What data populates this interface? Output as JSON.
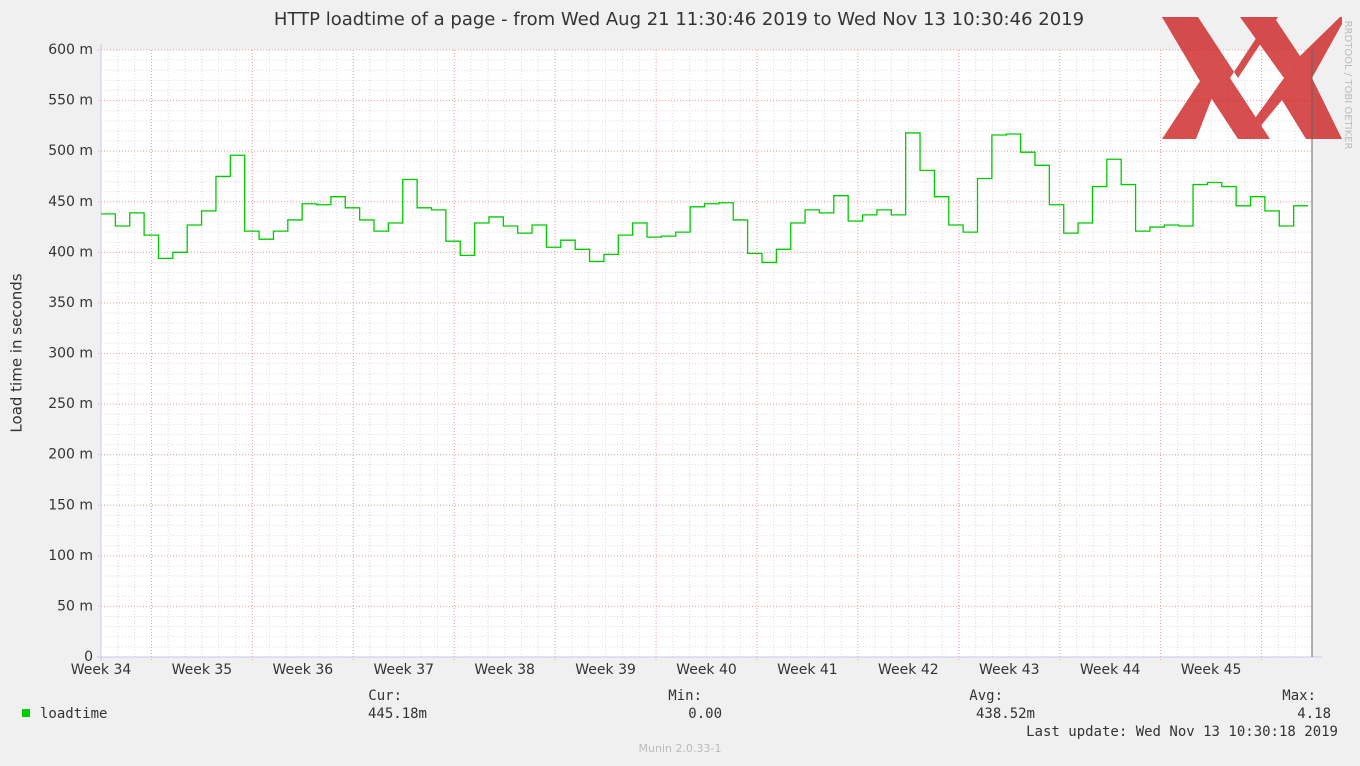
{
  "chart_data": {
    "type": "line",
    "step": true,
    "title": "HTTP loadtime of a page - from Wed Aug 21 11:30:46 2019 to Wed Nov 13 10:30:46 2019",
    "y_label": "Load time in seconds",
    "side_label": "RRDTOOL / TOBI OETIKER",
    "xticks": [
      "Week 34",
      "Week 35",
      "Week 36",
      "Week 37",
      "Week 38",
      "Week 39",
      "Week 40",
      "Week 41",
      "Week 42",
      "Week 43",
      "Week 44",
      "Week 45"
    ],
    "ylim": [
      0,
      600
    ],
    "yticks": [
      {
        "value": 0,
        "label": "0"
      },
      {
        "value": 50,
        "label": "50 m"
      },
      {
        "value": 100,
        "label": "100 m"
      },
      {
        "value": 150,
        "label": "150 m"
      },
      {
        "value": 200,
        "label": "200 m"
      },
      {
        "value": 250,
        "label": "250 m"
      },
      {
        "value": 300,
        "label": "300 m"
      },
      {
        "value": 350,
        "label": "350 m"
      },
      {
        "value": 400,
        "label": "400 m"
      },
      {
        "value": 450,
        "label": "450 m"
      },
      {
        "value": 500,
        "label": "500 m"
      },
      {
        "value": 550,
        "label": "550 m"
      },
      {
        "value": 600,
        "label": "600 m"
      }
    ],
    "grid": true,
    "series": [
      {
        "name": "loadtime",
        "color": "#00cc00",
        "values": [
          438,
          426,
          439,
          417,
          394,
          400,
          427,
          441,
          475,
          496,
          421,
          413,
          421,
          432,
          448,
          447,
          455,
          444,
          432,
          421,
          429,
          472,
          444,
          442,
          411,
          397,
          429,
          435,
          426,
          419,
          427,
          405,
          412,
          403,
          391,
          398,
          417,
          429,
          415,
          416,
          420,
          445,
          448,
          449,
          432,
          399,
          390,
          403,
          429,
          442,
          439,
          456,
          431,
          437,
          442,
          437,
          518,
          481,
          455,
          427,
          420,
          473,
          516,
          517,
          499,
          486,
          447,
          419,
          429,
          465,
          492,
          467,
          421,
          425,
          427,
          426,
          467,
          469,
          465,
          446,
          455,
          441,
          426,
          446
        ]
      }
    ],
    "stats": {
      "headers": [
        "Cur:",
        "Min:",
        "Avg:",
        "Max:"
      ],
      "values": [
        "445.18m",
        "0.00",
        "438.52m",
        "4.18"
      ]
    },
    "last_update": "Last update: Wed Nov 13 10:30:18 2019",
    "footer": "Munin 2.0.33-1"
  }
}
